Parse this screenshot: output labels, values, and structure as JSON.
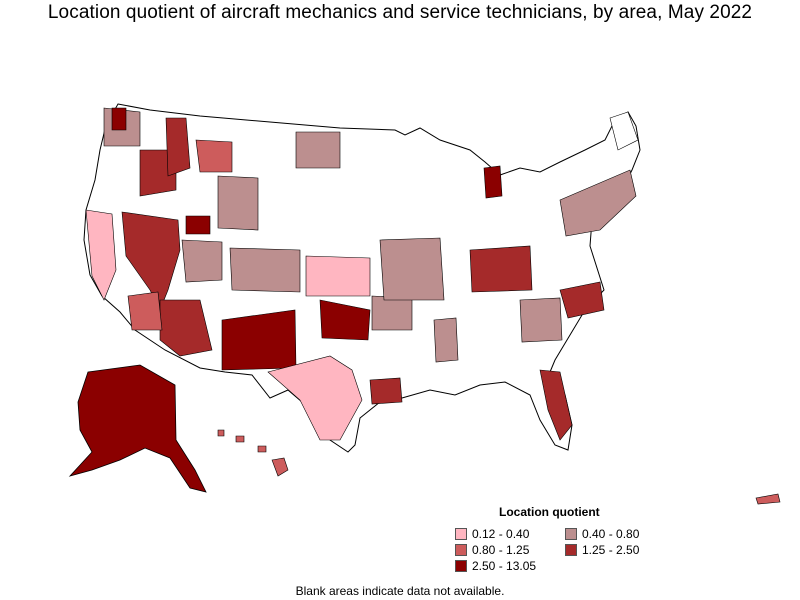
{
  "title": "Location quotient of aircraft mechanics and service technicians, by area, May 2022",
  "legend": {
    "title": "Location quotient",
    "items": [
      {
        "label": "0.12 - 0.40",
        "color": "#ffb6c1"
      },
      {
        "label": "0.40 - 0.80",
        "color": "#bc8f8f"
      },
      {
        "label": "0.80 - 1.25",
        "color": "#cd5c5c"
      },
      {
        "label": "1.25 - 2.50",
        "color": "#a52a2a"
      },
      {
        "label": "2.50 - 13.05",
        "color": "#8b0000"
      }
    ]
  },
  "footnote": "Blank areas indicate data not available.",
  "colors": {
    "blank": "#ffffff",
    "border": "#000000"
  }
}
